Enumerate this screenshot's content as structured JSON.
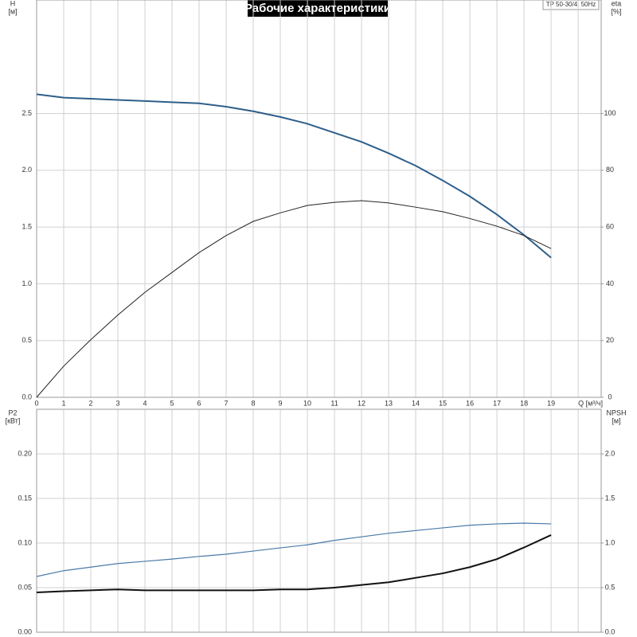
{
  "header": {
    "title": "Рабочие характеристики",
    "model": "TP 50-30/4, 50Hz"
  },
  "chart_data": [
    {
      "type": "line",
      "y_label": [
        "H",
        "[м]"
      ],
      "y2_label": [
        "eta",
        "[%]"
      ],
      "x": [
        0,
        1,
        2,
        3,
        4,
        5,
        6,
        7,
        8,
        9,
        10,
        11,
        12,
        13,
        14,
        15,
        16,
        17,
        18,
        19
      ],
      "series": [
        {
          "color": "#2e5f8a",
          "values": [
            2.67,
            2.64,
            2.63,
            2.62,
            2.61,
            2.6,
            2.59,
            2.56,
            2.52,
            2.47,
            2.41,
            2.33,
            2.25,
            2.15,
            2.04,
            1.91,
            1.77,
            1.61,
            1.43,
            1.23
          ]
        },
        {
          "color": "#222222",
          "axis": "y2",
          "values": [
            0,
            11,
            20.3,
            29,
            37,
            44,
            51,
            57,
            62,
            65,
            67.6,
            68.7,
            69.3,
            68.5,
            67,
            65.4,
            63,
            60.3,
            57,
            52.4
          ]
        }
      ],
      "xlim": [
        0,
        20.85
      ],
      "xticks": [
        0,
        1,
        2,
        3,
        4,
        5,
        6,
        7,
        8,
        9,
        10,
        11,
        12,
        13,
        14,
        15,
        16,
        17,
        18,
        19,
        {
          "value": 20,
          "label": "Q [м³/ч]"
        }
      ],
      "ylim": [
        0,
        3.5
      ],
      "yticks": [
        {
          "value": 0,
          "label": "0.0"
        },
        0.5,
        {
          "value": 1,
          "label": "1.0"
        },
        1.5,
        {
          "value": 2,
          "label": "2.0"
        },
        2.5
      ],
      "y2lim": [
        0,
        140
      ],
      "y2ticks": [
        0,
        20,
        40,
        60,
        80,
        100
      ],
      "grid": true
    },
    {
      "type": "line",
      "y_label": [
        "P2",
        "[кВт]"
      ],
      "y2_label": [
        "NPSH",
        "[м]"
      ],
      "x": [
        0,
        1,
        2,
        3,
        4,
        5,
        6,
        7,
        8,
        9,
        10,
        11,
        12,
        13,
        14,
        15,
        16,
        17,
        18,
        19
      ],
      "series": [
        {
          "color": "#4a7aa8",
          "values": [
            0.0625,
            0.069,
            0.073,
            0.077,
            0.0795,
            0.082,
            0.085,
            0.0875,
            0.091,
            0.0946,
            0.098,
            0.103,
            0.107,
            0.111,
            0.114,
            0.117,
            0.12,
            0.1215,
            0.1223,
            0.1215
          ]
        },
        {
          "color": "#111111",
          "axis": "y2",
          "values": [
            0.446,
            0.46,
            0.47,
            0.48,
            0.47,
            0.47,
            0.47,
            0.47,
            0.47,
            0.48,
            0.48,
            0.5,
            0.53,
            0.56,
            0.61,
            0.66,
            0.73,
            0.82,
            0.95,
            1.09
          ]
        }
      ],
      "xlim": [
        0,
        20.85
      ],
      "ylim": [
        0,
        0.25
      ],
      "yticks": [
        {
          "value": 0,
          "label": "0.00"
        },
        0.05,
        {
          "value": 0.1,
          "label": "0.10"
        },
        0.15,
        {
          "value": 0.2,
          "label": "0.20"
        }
      ],
      "y2lim": [
        0,
        2.5
      ],
      "y2ticks": [
        {
          "value": 0,
          "label": "0.0"
        },
        0.5,
        {
          "value": 1,
          "label": "1.0"
        },
        1.5,
        {
          "value": 2,
          "label": "2.0"
        }
      ],
      "grid": true
    }
  ]
}
